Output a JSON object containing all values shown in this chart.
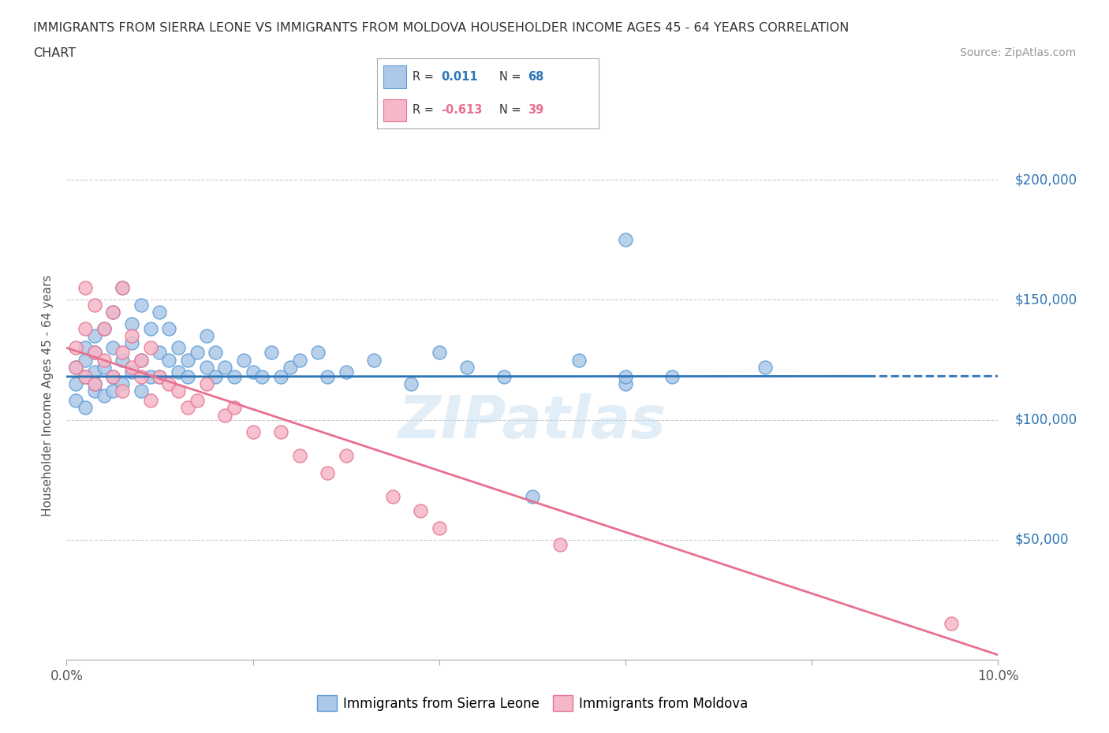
{
  "title_line1": "IMMIGRANTS FROM SIERRA LEONE VS IMMIGRANTS FROM MOLDOVA HOUSEHOLDER INCOME AGES 45 - 64 YEARS CORRELATION",
  "title_line2": "CHART",
  "source_text": "Source: ZipAtlas.com",
  "ylabel": "Householder Income Ages 45 - 64 years",
  "xlim": [
    0.0,
    0.1
  ],
  "ylim": [
    0,
    220000
  ],
  "yticks": [
    0,
    50000,
    100000,
    150000,
    200000
  ],
  "ytick_labels_right": [
    "",
    "$50,000",
    "$100,000",
    "$150,000",
    "$200,000"
  ],
  "xticks": [
    0.0,
    0.02,
    0.04,
    0.06,
    0.08,
    0.1
  ],
  "xtick_labels": [
    "0.0%",
    "",
    "",
    "",
    "",
    "10.0%"
  ],
  "color_sl": "#adc8e8",
  "color_md": "#f5b8c8",
  "edge_sl": "#5b9bd5",
  "edge_md": "#e87090",
  "line_sl": "#2e75b6",
  "line_md": "#e87090",
  "R_sl": 0.011,
  "N_sl": 68,
  "R_md": -0.613,
  "N_md": 39,
  "legend_label_sl": "Immigrants from Sierra Leone",
  "legend_label_md": "Immigrants from Moldova",
  "watermark": "ZIPatlas",
  "grid_color": "#cccccc",
  "background_color": "#ffffff",
  "sl_line_start_x": 0.0,
  "sl_line_end_solid_x": 0.086,
  "sl_line_end_x": 0.1,
  "sl_line_y_intercept": 118000,
  "sl_line_slope": 2000,
  "md_line_start_x": 0.0,
  "md_line_end_x": 0.1,
  "md_line_y_intercept": 130000,
  "md_line_slope": -1280000,
  "sierra_leone_x": [
    0.001,
    0.001,
    0.001,
    0.002,
    0.002,
    0.002,
    0.002,
    0.003,
    0.003,
    0.003,
    0.003,
    0.003,
    0.004,
    0.004,
    0.004,
    0.005,
    0.005,
    0.005,
    0.005,
    0.006,
    0.006,
    0.006,
    0.007,
    0.007,
    0.007,
    0.008,
    0.008,
    0.008,
    0.009,
    0.009,
    0.01,
    0.01,
    0.01,
    0.011,
    0.011,
    0.012,
    0.012,
    0.013,
    0.013,
    0.014,
    0.015,
    0.015,
    0.016,
    0.016,
    0.017,
    0.018,
    0.019,
    0.02,
    0.021,
    0.022,
    0.023,
    0.024,
    0.025,
    0.027,
    0.028,
    0.03,
    0.033,
    0.037,
    0.04,
    0.043,
    0.047,
    0.05,
    0.055,
    0.06,
    0.065,
    0.075,
    0.06,
    0.06
  ],
  "sierra_leone_y": [
    115000,
    108000,
    122000,
    118000,
    125000,
    105000,
    130000,
    112000,
    135000,
    120000,
    128000,
    115000,
    138000,
    122000,
    110000,
    145000,
    118000,
    130000,
    112000,
    125000,
    155000,
    115000,
    140000,
    120000,
    132000,
    125000,
    148000,
    112000,
    138000,
    118000,
    128000,
    145000,
    118000,
    125000,
    138000,
    120000,
    130000,
    125000,
    118000,
    128000,
    122000,
    135000,
    118000,
    128000,
    122000,
    118000,
    125000,
    120000,
    118000,
    128000,
    118000,
    122000,
    125000,
    128000,
    118000,
    120000,
    125000,
    115000,
    128000,
    122000,
    118000,
    68000,
    125000,
    115000,
    118000,
    122000,
    175000,
    118000
  ],
  "moldova_x": [
    0.001,
    0.001,
    0.002,
    0.002,
    0.002,
    0.003,
    0.003,
    0.003,
    0.004,
    0.004,
    0.005,
    0.005,
    0.006,
    0.006,
    0.006,
    0.007,
    0.007,
    0.008,
    0.008,
    0.009,
    0.009,
    0.01,
    0.011,
    0.012,
    0.013,
    0.014,
    0.015,
    0.017,
    0.018,
    0.02,
    0.023,
    0.025,
    0.028,
    0.03,
    0.035,
    0.038,
    0.04,
    0.053,
    0.095
  ],
  "moldova_y": [
    130000,
    122000,
    138000,
    118000,
    155000,
    128000,
    115000,
    148000,
    125000,
    138000,
    118000,
    145000,
    128000,
    112000,
    155000,
    122000,
    135000,
    118000,
    125000,
    130000,
    108000,
    118000,
    115000,
    112000,
    105000,
    108000,
    115000,
    102000,
    105000,
    95000,
    95000,
    85000,
    78000,
    85000,
    68000,
    62000,
    55000,
    48000,
    15000
  ]
}
